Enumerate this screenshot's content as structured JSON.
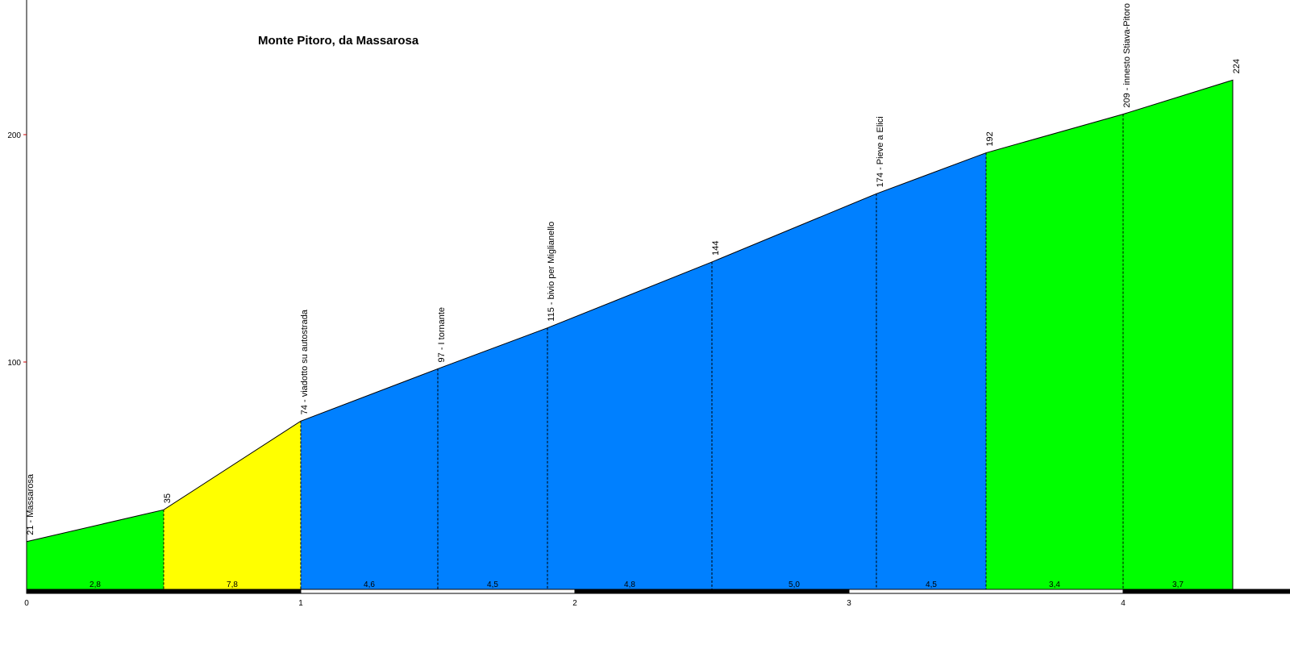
{
  "chart_data": {
    "type": "area",
    "title": "Monte Pitoro, da Massarosa",
    "xlim": [
      0,
      4.7
    ],
    "ylim": [
      0,
      260
    ],
    "y_ticks": [
      100,
      200
    ],
    "x_ticks": [
      0,
      1,
      2,
      3,
      4
    ],
    "points": [
      {
        "x": 0.0,
        "y": 21,
        "label": "21 - Massarosa"
      },
      {
        "x": 0.5,
        "y": 35,
        "label": "35"
      },
      {
        "x": 1.0,
        "y": 74,
        "label": "74 - viadotto su autostrada"
      },
      {
        "x": 1.5,
        "y": 97,
        "label": "97 - I tornante"
      },
      {
        "x": 1.9,
        "y": 115,
        "label": "115 - bivio per Miglianello"
      },
      {
        "x": 2.5,
        "y": 144,
        "label": "144"
      },
      {
        "x": 3.1,
        "y": 174,
        "label": "174 - Pieve a Elici"
      },
      {
        "x": 3.5,
        "y": 192,
        "label": "192"
      },
      {
        "x": 4.0,
        "y": 209,
        "label": "209 - innesto Stiava-Pitoro"
      },
      {
        "x": 4.4,
        "y": 224,
        "label": "224"
      }
    ],
    "segments": [
      {
        "gradient": "2,8",
        "color": "#00ff00"
      },
      {
        "gradient": "7,8",
        "color": "#ffff00"
      },
      {
        "gradient": "4,6",
        "color": "#0080ff"
      },
      {
        "gradient": "4,5",
        "color": "#0080ff"
      },
      {
        "gradient": "4,8",
        "color": "#0080ff"
      },
      {
        "gradient": "5,0",
        "color": "#0080ff"
      },
      {
        "gradient": "4,5",
        "color": "#0080ff"
      },
      {
        "gradient": "3,4",
        "color": "#00ff00"
      },
      {
        "gradient": "3,7",
        "color": "#00ff00"
      }
    ],
    "axis_color": "#000000",
    "tick_color": "#cc0000"
  }
}
